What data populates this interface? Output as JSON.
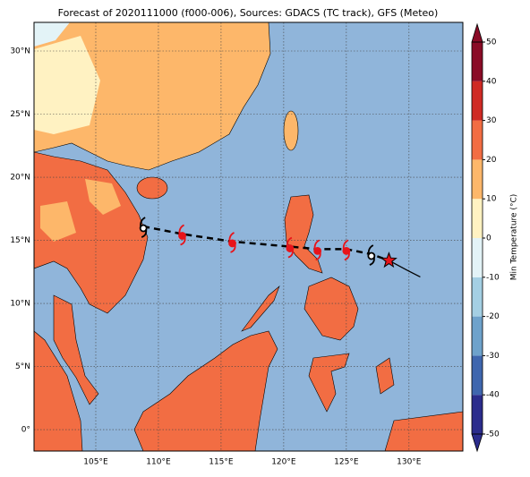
{
  "map": {
    "title": "Forecast of 2020111000 (f000-006), Sources: GDACS (TC track), GFS (Meteo)",
    "xlim": [
      100.07,
      134.3
    ],
    "ylim": [
      -1.7,
      32.27
    ],
    "xticks": [
      {
        "value": 105,
        "label": "105°E"
      },
      {
        "value": 110,
        "label": "110°E"
      },
      {
        "value": 115,
        "label": "115°E"
      },
      {
        "value": 120,
        "label": "120°E"
      },
      {
        "value": 125,
        "label": "125°E"
      },
      {
        "value": 130,
        "label": "130°E"
      }
    ],
    "yticks": [
      {
        "value": 0,
        "label": "0°"
      },
      {
        "value": 5,
        "label": "5°N"
      },
      {
        "value": 10,
        "label": "10°N"
      },
      {
        "value": 15,
        "label": "15°N"
      },
      {
        "value": 20,
        "label": "20°N"
      },
      {
        "value": 25,
        "label": "25°N"
      },
      {
        "value": 30,
        "label": "30°N"
      }
    ],
    "track": {
      "lon": [
        108.8,
        111.9,
        115.9,
        120.5,
        122.7,
        125.0,
        127.0
      ],
      "lat": [
        16.1,
        15.5,
        14.9,
        14.5,
        14.3,
        14.3,
        13.9
      ],
      "colors": [
        "#000000",
        "#e8141a",
        "#e8141a",
        "#e8141a",
        "#e8141a",
        "#e8141a",
        "#000000"
      ]
    },
    "forecast_path": {
      "lon": [
        128.4,
        129.9,
        130.9
      ],
      "lat": [
        13.4,
        12.6,
        12.1
      ]
    },
    "colorbar": {
      "label": "Min Temperature (°C)",
      "ticks": [
        -50,
        -40,
        -30,
        -20,
        -10,
        0,
        10,
        20,
        30,
        40,
        50
      ],
      "colors": [
        "#2b2c8c",
        "#3f66ae",
        "#6ea2cb",
        "#a4cfe3",
        "#e3f3f7",
        "#fff2c2",
        "#fdb76a",
        "#f26d43",
        "#cf2a24",
        "#8a0b26"
      ]
    }
  }
}
